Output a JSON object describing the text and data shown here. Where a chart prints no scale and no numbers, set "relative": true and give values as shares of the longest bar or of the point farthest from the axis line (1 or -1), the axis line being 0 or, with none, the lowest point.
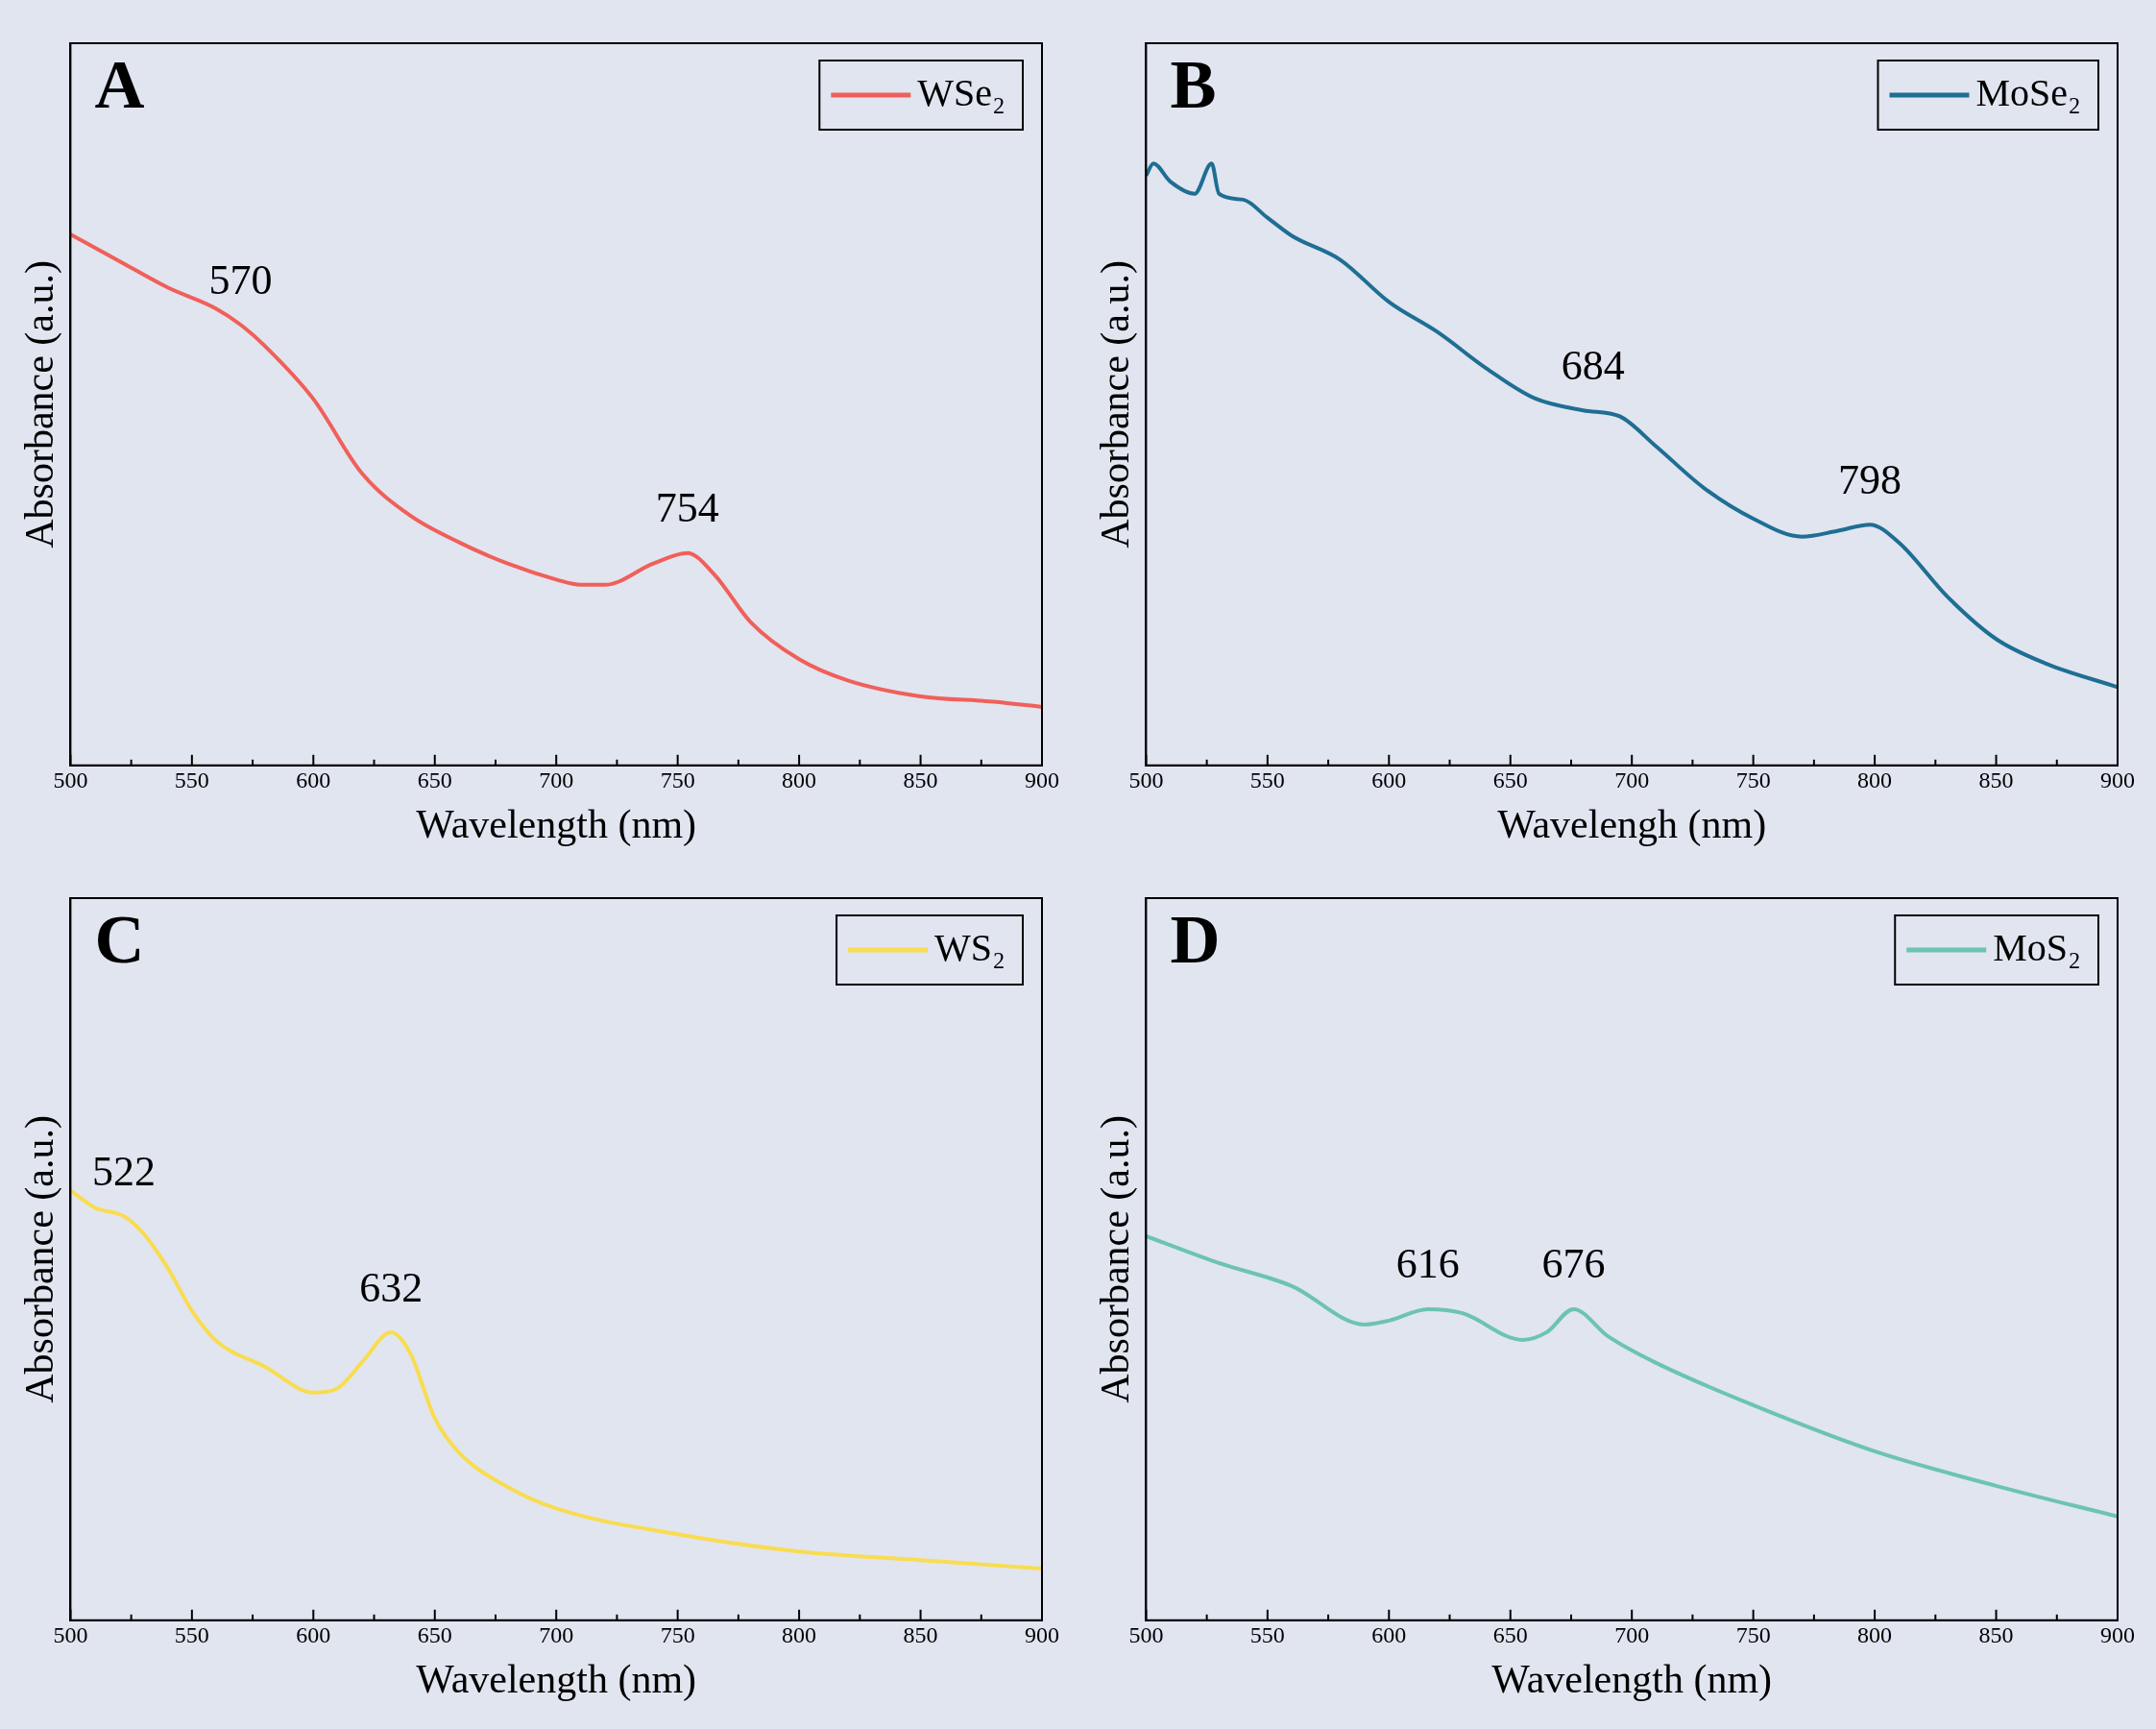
{
  "chart_data": [
    {
      "type": "line",
      "title": "A",
      "xlabel": "Wavelength (nm)",
      "ylabel": "Absorbance (a.u.)",
      "relative": true,
      "grid": false,
      "legend": "top right",
      "x": [
        500,
        520,
        540,
        560,
        570,
        580,
        600,
        620,
        640,
        660,
        680,
        700,
        710,
        720,
        740,
        754,
        765,
        780,
        800,
        820,
        850,
        880,
        900
      ],
      "series": [
        {
          "name": "WSe₂",
          "color": "#f0605a",
          "values": [
            1.0,
            0.95,
            0.9,
            0.86,
            0.83,
            0.79,
            0.69,
            0.55,
            0.47,
            0.42,
            0.38,
            0.35,
            0.34,
            0.34,
            0.38,
            0.4,
            0.36,
            0.27,
            0.2,
            0.16,
            0.13,
            0.12,
            0.11
          ]
        }
      ],
      "xlim": [
        500,
        900
      ],
      "xticks": [
        500,
        {
          "value": 525,
          "label": null
        },
        550,
        {
          "value": 575,
          "label": null
        },
        600,
        {
          "value": 625,
          "label": null
        },
        650,
        {
          "value": 675,
          "label": null
        },
        700,
        {
          "value": 725,
          "label": null
        },
        750,
        {
          "value": 775,
          "label": null
        },
        800,
        {
          "value": 825,
          "label": null
        },
        850,
        {
          "value": 875,
          "label": null
        },
        900
      ],
      "annotations": [
        {
          "text": "570",
          "x": 570,
          "y": 0.83
        },
        {
          "text": "754",
          "x": 754,
          "y": 0.4
        }
      ]
    },
    {
      "type": "line",
      "title": "B",
      "xlabel": "Wavelengh (nm)",
      "ylabel": "Absorbance (a.u.)",
      "relative": true,
      "grid": false,
      "legend": "top right",
      "x": [
        500,
        503,
        510,
        520,
        527,
        530,
        540,
        550,
        560,
        580,
        600,
        620,
        640,
        660,
        680,
        695,
        710,
        730,
        750,
        770,
        785,
        798,
        810,
        830,
        850,
        870,
        900
      ],
      "series": [
        {
          "name": "MoSe₂",
          "color": "#1f6e94",
          "values": [
            0.98,
            1.0,
            0.97,
            0.95,
            1.0,
            0.95,
            0.94,
            0.91,
            0.88,
            0.84,
            0.77,
            0.72,
            0.66,
            0.61,
            0.59,
            0.58,
            0.53,
            0.46,
            0.41,
            0.38,
            0.39,
            0.4,
            0.37,
            0.28,
            0.21,
            0.17,
            0.13
          ]
        }
      ],
      "xlim": [
        500,
        900
      ],
      "xticks": [
        500,
        {
          "value": 525,
          "label": null
        },
        550,
        {
          "value": 575,
          "label": null
        },
        600,
        {
          "value": 625,
          "label": null
        },
        650,
        {
          "value": 675,
          "label": null
        },
        700,
        {
          "value": 725,
          "label": null
        },
        750,
        {
          "value": 775,
          "label": null
        },
        800,
        {
          "value": 825,
          "label": null
        },
        850,
        {
          "value": 875,
          "label": null
        },
        900
      ],
      "annotations": [
        {
          "text": "684",
          "x": 684,
          "y": 0.59
        },
        {
          "text": "798",
          "x": 798,
          "y": 0.4
        }
      ]
    },
    {
      "type": "line",
      "title": "C",
      "xlabel": "Wavelength (nm)",
      "ylabel": "Absorbance (a.u.)",
      "relative": true,
      "grid": false,
      "legend": "top right",
      "x": [
        500,
        510,
        522,
        530,
        540,
        550,
        560,
        580,
        600,
        610,
        620,
        632,
        640,
        650,
        660,
        680,
        700,
        750,
        800,
        850,
        900
      ],
      "series": [
        {
          "name": "WS₂",
          "color": "#f9dc50",
          "values": [
            1.0,
            0.96,
            0.94,
            0.9,
            0.82,
            0.72,
            0.65,
            0.59,
            0.53,
            0.54,
            0.6,
            0.67,
            0.62,
            0.47,
            0.39,
            0.31,
            0.26,
            0.2,
            0.16,
            0.14,
            0.12
          ]
        }
      ],
      "xlim": [
        500,
        900
      ],
      "xticks": [
        500,
        {
          "value": 525,
          "label": null
        },
        550,
        {
          "value": 575,
          "label": null
        },
        600,
        {
          "value": 625,
          "label": null
        },
        650,
        {
          "value": 675,
          "label": null
        },
        700,
        {
          "value": 725,
          "label": null
        },
        750,
        {
          "value": 775,
          "label": null
        },
        800,
        {
          "value": 825,
          "label": null
        },
        850,
        {
          "value": 875,
          "label": null
        },
        900
      ],
      "annotations": [
        {
          "text": "522",
          "x": 522,
          "y": 0.94
        },
        {
          "text": "632",
          "x": 632,
          "y": 0.67
        }
      ]
    },
    {
      "type": "line",
      "title": "D",
      "xlabel": "Wavelength (nm)",
      "ylabel": "Absorbance (a.u.)",
      "relative": true,
      "grid": false,
      "legend": "top right",
      "x": [
        500,
        530,
        560,
        590,
        600,
        616,
        630,
        655,
        665,
        676,
        690,
        710,
        750,
        800,
        850,
        900
      ],
      "series": [
        {
          "name": "MoS₂",
          "color": "#6cc4b0",
          "values": [
            1.0,
            0.93,
            0.87,
            0.77,
            0.78,
            0.81,
            0.8,
            0.73,
            0.75,
            0.81,
            0.74,
            0.67,
            0.56,
            0.44,
            0.35,
            0.27
          ]
        }
      ],
      "xlim": [
        500,
        900
      ],
      "xticks": [
        500,
        {
          "value": 525,
          "label": null
        },
        550,
        {
          "value": 575,
          "label": null
        },
        600,
        {
          "value": 625,
          "label": null
        },
        650,
        {
          "value": 675,
          "label": null
        },
        700,
        {
          "value": 725,
          "label": null
        },
        750,
        {
          "value": 775,
          "label": null
        },
        800,
        {
          "value": 825,
          "label": null
        },
        850,
        {
          "value": 875,
          "label": null
        },
        900
      ],
      "annotations": [
        {
          "text": "616",
          "x": 616,
          "y": 0.81
        },
        {
          "text": "676",
          "x": 676,
          "y": 0.81
        }
      ]
    }
  ]
}
